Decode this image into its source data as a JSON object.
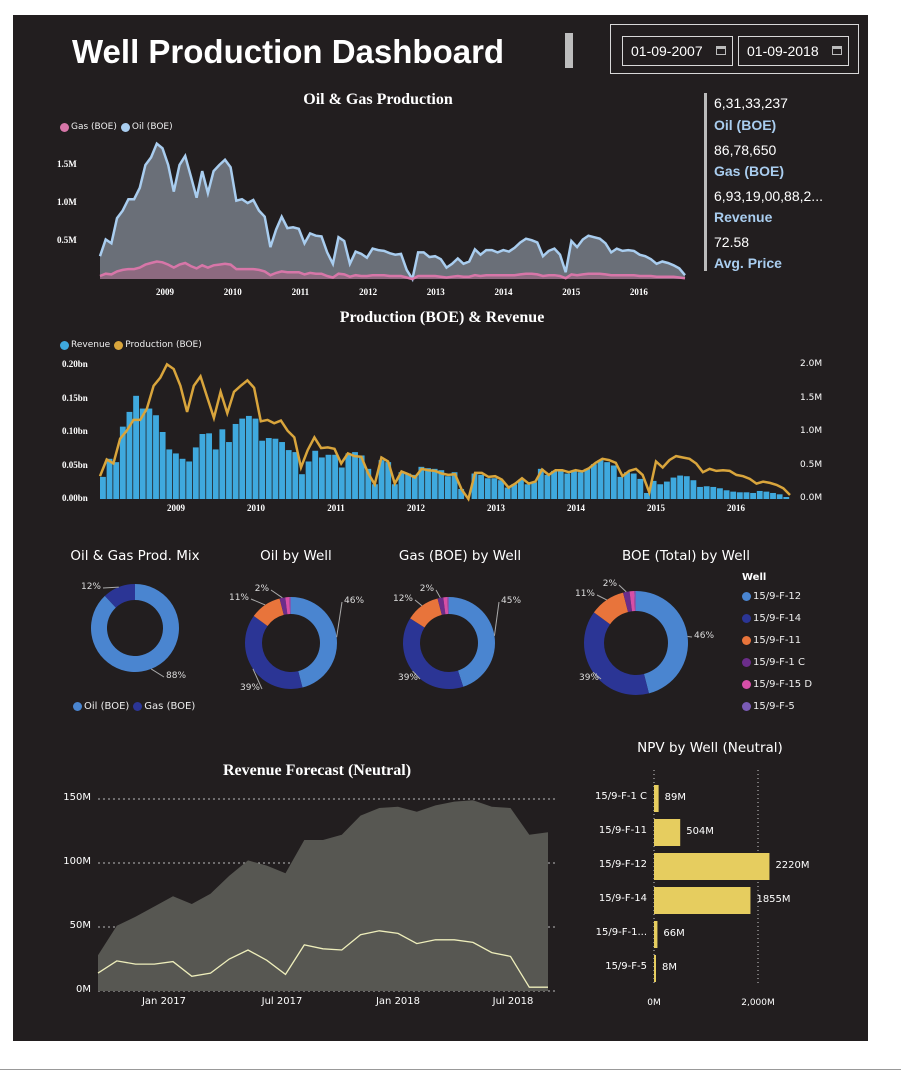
{
  "header": {
    "title": "Well Production Dashboard",
    "date_from": "01-09-2007",
    "date_to": "01-09-2018"
  },
  "kpis": [
    {
      "value": "6,31,33,237",
      "label": "Oil (BOE)"
    },
    {
      "value": "86,78,650",
      "label": "Gas (BOE)"
    },
    {
      "value": "6,93,19,00,88,2...",
      "label": "Revenue"
    },
    {
      "value": "72.58",
      "label": "Avg. Price"
    }
  ],
  "chart_data": [
    {
      "type": "area",
      "title": "Oil & Gas Production",
      "legend": [
        "Gas (BOE)",
        "Oil (BOE)"
      ],
      "legend_position": "top-left",
      "x_range": [
        "2008-02",
        "2016-09"
      ],
      "x_ticks": [
        "2009",
        "2010",
        "2011",
        "2012",
        "2013",
        "2014",
        "2015",
        "2016"
      ],
      "y_ticks": [
        "0.5M",
        "1.0M",
        "1.5M"
      ],
      "ylim": [
        0,
        2.0
      ],
      "colors": {
        "Oil (BOE)": "#a9cdef",
        "Gas (BOE)": "#d776a8"
      },
      "series": [
        {
          "name": "Oil (BOE)",
          "unit": "M",
          "values": [
            0.3,
            0.52,
            0.47,
            0.8,
            0.9,
            1.05,
            1.05,
            1.2,
            1.5,
            1.6,
            1.78,
            1.72,
            1.5,
            1.15,
            1.5,
            1.62,
            1.35,
            1.07,
            1.42,
            1.13,
            1.42,
            1.5,
            1.57,
            1.47,
            1.03,
            1.05,
            1.0,
            1.04,
            0.9,
            0.82,
            0.42,
            0.65,
            0.82,
            0.67,
            0.68,
            0.66,
            0.47,
            0.6,
            0.57,
            0.56,
            0.35,
            0.2,
            0.55,
            0.5,
            0.2,
            0.36,
            0.33,
            0.28,
            0.4,
            0.38,
            0.37,
            0.34,
            0.32,
            0.33,
            0.12,
            0.0,
            0.35,
            0.35,
            0.29,
            0.3,
            0.26,
            0.15,
            0.2,
            0.27,
            0.2,
            0.23,
            0.39,
            0.32,
            0.38,
            0.38,
            0.35,
            0.38,
            0.36,
            0.41,
            0.48,
            0.53,
            0.51,
            0.48,
            0.3,
            0.37,
            0.4,
            0.32,
            0.09,
            0.5,
            0.42,
            0.52,
            0.57,
            0.55,
            0.53,
            0.47,
            0.35,
            0.4,
            0.37,
            0.38,
            0.37,
            0.32,
            0.3,
            0.26,
            0.2,
            0.23,
            0.21,
            0.18,
            0.14,
            0.05
          ]
        },
        {
          "name": "Gas (BOE)",
          "unit": "M",
          "values": [
            0.04,
            0.07,
            0.06,
            0.1,
            0.12,
            0.13,
            0.13,
            0.15,
            0.19,
            0.21,
            0.23,
            0.22,
            0.19,
            0.15,
            0.19,
            0.21,
            0.17,
            0.14,
            0.18,
            0.15,
            0.18,
            0.19,
            0.2,
            0.19,
            0.13,
            0.13,
            0.13,
            0.13,
            0.12,
            0.1,
            0.05,
            0.08,
            0.1,
            0.09,
            0.09,
            0.09,
            0.06,
            0.08,
            0.07,
            0.07,
            0.04,
            0.02,
            0.07,
            0.06,
            0.03,
            0.05,
            0.04,
            0.04,
            0.05,
            0.05,
            0.05,
            0.04,
            0.04,
            0.04,
            0.02,
            0.0,
            0.04,
            0.04,
            0.04,
            0.04,
            0.03,
            0.02,
            0.03,
            0.04,
            0.03,
            0.03,
            0.05,
            0.04,
            0.05,
            0.05,
            0.05,
            0.05,
            0.05,
            0.05,
            0.06,
            0.07,
            0.07,
            0.06,
            0.04,
            0.05,
            0.05,
            0.04,
            0.01,
            0.06,
            0.05,
            0.06,
            0.07,
            0.07,
            0.07,
            0.06,
            0.05,
            0.05,
            0.05,
            0.05,
            0.05,
            0.04,
            0.04,
            0.04,
            0.03,
            0.03,
            0.03,
            0.03,
            0.02,
            0.01
          ]
        }
      ]
    },
    {
      "type": "bar+line",
      "title": "Production (BOE) & Revenue",
      "legend": [
        "Revenue",
        "Production (BOE)"
      ],
      "legend_position": "top-left",
      "x_range": [
        "2008-02",
        "2016-09"
      ],
      "x_ticks": [
        "2009",
        "2010",
        "2011",
        "2012",
        "2013",
        "2014",
        "2015",
        "2016"
      ],
      "y_left_ticks": [
        "0.00bn",
        "0.05bn",
        "0.10bn",
        "0.15bn",
        "0.20bn"
      ],
      "y_left_lim": [
        0,
        0.2
      ],
      "y_right_ticks": [
        "0.0M",
        "0.5M",
        "1.0M",
        "1.5M",
        "2.0M"
      ],
      "y_right_lim": [
        0,
        2.0
      ],
      "colors": {
        "Revenue": "#3fa9de",
        "Production (BOE)": "#d9a53c"
      },
      "series": [
        {
          "name": "Revenue",
          "unit": "bn",
          "values": [
            0.033,
            0.06,
            0.055,
            0.108,
            0.13,
            0.154,
            0.135,
            0.135,
            0.125,
            0.1,
            0.074,
            0.068,
            0.06,
            0.056,
            0.077,
            0.097,
            0.098,
            0.074,
            0.104,
            0.085,
            0.112,
            0.12,
            0.124,
            0.12,
            0.087,
            0.091,
            0.09,
            0.085,
            0.073,
            0.07,
            0.037,
            0.056,
            0.072,
            0.062,
            0.066,
            0.066,
            0.047,
            0.068,
            0.07,
            0.065,
            0.045,
            0.022,
            0.058,
            0.055,
            0.022,
            0.04,
            0.038,
            0.036,
            0.048,
            0.046,
            0.045,
            0.043,
            0.034,
            0.04,
            0.015,
            0.0,
            0.038,
            0.036,
            0.031,
            0.031,
            0.028,
            0.017,
            0.022,
            0.029,
            0.022,
            0.025,
            0.045,
            0.036,
            0.042,
            0.042,
            0.038,
            0.042,
            0.04,
            0.045,
            0.052,
            0.058,
            0.055,
            0.05,
            0.033,
            0.04,
            0.038,
            0.03,
            0.009,
            0.027,
            0.022,
            0.026,
            0.032,
            0.035,
            0.034,
            0.028,
            0.018,
            0.019,
            0.018,
            0.016,
            0.013,
            0.011,
            0.01,
            0.01,
            0.009,
            0.012,
            0.011,
            0.009,
            0.007,
            0.003
          ]
        },
        {
          "name": "Production (BOE)",
          "unit": "M",
          "derived_from": [
            "Oil (BOE)",
            "Gas (BOE)"
          ]
        }
      ]
    },
    {
      "type": "pie",
      "title": "Oil & Gas Prod. Mix",
      "legend": [
        "Oil (BOE)",
        "Gas (BOE)"
      ],
      "legend_position": "bottom",
      "slices": [
        {
          "name": "Oil (BOE)",
          "value": 88,
          "label": "88%",
          "color": "#4a85d0"
        },
        {
          "name": "Gas (BOE)",
          "value": 12,
          "label": "12%",
          "color": "#2b3595"
        }
      ]
    },
    {
      "type": "pie",
      "title": "Oil by Well",
      "slices": [
        {
          "name": "15/9-F-12",
          "value": 46,
          "label": "46%"
        },
        {
          "name": "15/9-F-14",
          "value": 39,
          "label": "39%"
        },
        {
          "name": "15/9-F-11",
          "value": 11,
          "label": "11%"
        },
        {
          "name": "15/9-F-1 C",
          "value": 2,
          "label": "2%"
        },
        {
          "name": "15/9-F-15 D",
          "value": 1.5
        },
        {
          "name": "15/9-F-5",
          "value": 0.5
        }
      ]
    },
    {
      "type": "pie",
      "title": "Gas (BOE) by Well",
      "slices": [
        {
          "name": "15/9-F-12",
          "value": 45,
          "label": "45%"
        },
        {
          "name": "15/9-F-14",
          "value": 39,
          "label": "39%"
        },
        {
          "name": "15/9-F-11",
          "value": 12,
          "label": "12%"
        },
        {
          "name": "15/9-F-1 C",
          "value": 2,
          "label": "2%"
        },
        {
          "name": "15/9-F-15 D",
          "value": 1.5
        },
        {
          "name": "15/9-F-5",
          "value": 0.5
        }
      ]
    },
    {
      "type": "pie",
      "title": "BOE (Total) by Well",
      "legend_title": "Well",
      "legend_position": "right",
      "slices": [
        {
          "name": "15/9-F-12",
          "value": 46,
          "label": "46%"
        },
        {
          "name": "15/9-F-14",
          "value": 39,
          "label": "39%"
        },
        {
          "name": "15/9-F-11",
          "value": 11,
          "label": "11%"
        },
        {
          "name": "15/9-F-1 C",
          "value": 2,
          "label": "2%"
        },
        {
          "name": "15/9-F-15 D",
          "value": 1.5
        },
        {
          "name": "15/9-F-5",
          "value": 0.5
        }
      ]
    },
    {
      "type": "area",
      "title": "Revenue Forecast (Neutral)",
      "x_range": [
        "2016-09",
        "2018-09"
      ],
      "x_ticks": [
        "Jan 2017",
        "Jul 2017",
        "Jan 2018",
        "Jul 2018"
      ],
      "y_ticks": [
        "0M",
        "50M",
        "100M",
        "150M"
      ],
      "ylim": [
        0,
        150
      ],
      "grid": true,
      "series": [
        {
          "name": "upper",
          "unit": "M",
          "values": [
            28,
            51,
            58,
            66,
            74,
            68,
            76,
            90,
            102,
            98,
            92,
            118,
            118,
            122,
            137,
            143,
            144,
            140,
            145,
            148,
            149,
            144,
            143,
            122,
            124
          ]
        },
        {
          "name": "neutral",
          "unit": "M",
          "values": [
            14,
            23.5,
            21,
            21,
            23,
            11.5,
            14,
            25,
            32,
            24,
            13,
            36,
            33,
            32,
            44,
            47,
            45,
            37,
            40,
            40,
            38,
            30,
            27,
            3,
            3
          ]
        }
      ]
    },
    {
      "type": "bar",
      "orientation": "horizontal",
      "title": "NPV by Well (Neutral)",
      "categories": [
        "15/9-F-1 C",
        "15/9-F-11",
        "15/9-F-12",
        "15/9-F-14",
        "15/9-F-1...",
        "15/9-F-5"
      ],
      "values": [
        89,
        504,
        2220,
        1855,
        66,
        8
      ],
      "labels": [
        "89M",
        "504M",
        "2220M",
        "1855M",
        "66M",
        "8M"
      ],
      "x_ticks": [
        "0M",
        "2,000M"
      ],
      "xlim": [
        0,
        2300
      ],
      "color": "#e6cd5f"
    }
  ],
  "well_colors": {
    "15/9-F-12": "#4a85d0",
    "15/9-F-14": "#2b3595",
    "15/9-F-11": "#e8743b",
    "15/9-F-1 C": "#6b2d8a",
    "15/9-F-15 D": "#d64fa7",
    "15/9-F-5": "#7a5bb5"
  }
}
